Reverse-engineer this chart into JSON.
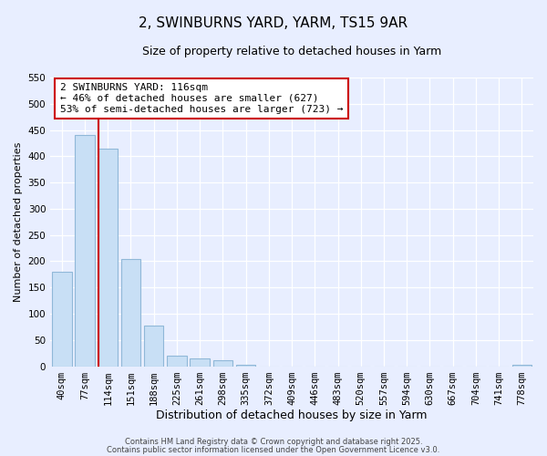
{
  "title": "2, SWINBURNS YARD, YARM, TS15 9AR",
  "subtitle": "Size of property relative to detached houses in Yarm",
  "xlabel": "Distribution of detached houses by size in Yarm",
  "ylabel": "Number of detached properties",
  "bar_labels": [
    "40sqm",
    "77sqm",
    "114sqm",
    "151sqm",
    "188sqm",
    "225sqm",
    "261sqm",
    "298sqm",
    "335sqm",
    "372sqm",
    "409sqm",
    "446sqm",
    "483sqm",
    "520sqm",
    "557sqm",
    "594sqm",
    "630sqm",
    "667sqm",
    "704sqm",
    "741sqm",
    "778sqm"
  ],
  "bar_values": [
    180,
    440,
    415,
    205,
    78,
    20,
    15,
    11,
    2,
    0,
    0,
    0,
    0,
    0,
    0,
    0,
    0,
    0,
    0,
    0,
    2
  ],
  "bar_color": "#c8dff5",
  "bar_edge_color": "#90b8d8",
  "vline_x_index": 2,
  "vline_color": "#cc0000",
  "annotation_text": "2 SWINBURNS YARD: 116sqm\n← 46% of detached houses are smaller (627)\n53% of semi-detached houses are larger (723) →",
  "annotation_box_edgecolor": "#cc0000",
  "ylim": [
    0,
    550
  ],
  "yticks": [
    0,
    50,
    100,
    150,
    200,
    250,
    300,
    350,
    400,
    450,
    500,
    550
  ],
  "background_color": "#e8eeff",
  "plot_background": "#e8eeff",
  "footnote1": "Contains HM Land Registry data © Crown copyright and database right 2025.",
  "footnote2": "Contains public sector information licensed under the Open Government Licence v3.0.",
  "title_fontsize": 11,
  "subtitle_fontsize": 9,
  "xlabel_fontsize": 9,
  "ylabel_fontsize": 8,
  "tick_fontsize": 7.5,
  "annotation_fontsize": 8,
  "footnote_fontsize": 6
}
